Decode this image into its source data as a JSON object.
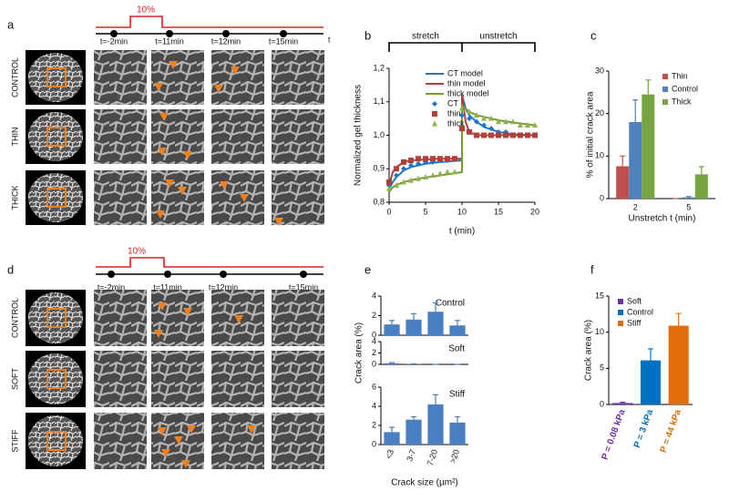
{
  "panels": {
    "a": {
      "letter": "a",
      "pulse": "10%",
      "times": [
        "t=-2min",
        "t=11min",
        "t=12min",
        "t=15min"
      ],
      "axis": "t",
      "rows": [
        "CONTROL",
        "THIN",
        "THICK"
      ]
    },
    "d": {
      "letter": "d",
      "pulse": "10%",
      "times": [
        "t=-2min",
        "t=11min",
        "t=12min",
        "t=15min"
      ],
      "rows": [
        "CONTROL",
        "SOFT",
        "STIFF"
      ]
    }
  },
  "chart_data": [
    {
      "type": "line",
      "panel": "b",
      "annotations": [
        "stretch",
        "unstretch"
      ],
      "xlabel": "t (min)",
      "ylabel": "Normalized gel thickness",
      "xlim": [
        0,
        20
      ],
      "xticks": [
        0,
        5,
        10,
        15,
        20
      ],
      "ylim": [
        0.8,
        1.2
      ],
      "yticks": [
        {
          "value": 0.8,
          "label": "0,8"
        },
        {
          "value": 0.9,
          "label": "0,9"
        },
        {
          "value": 1.0,
          "label": "1,0"
        },
        {
          "value": 1.1,
          "label": "1,1"
        },
        {
          "value": 1.2,
          "label": "1,2"
        }
      ],
      "legend": "upper right",
      "series": [
        {
          "name": "CT model",
          "color": "#1f77c4",
          "style": "line",
          "x": [
            0,
            0.5,
            1,
            2,
            3,
            5,
            7,
            10,
            10,
            10.5,
            11,
            12,
            13,
            15,
            17,
            20
          ],
          "values": [
            0.84,
            0.86,
            0.875,
            0.895,
            0.905,
            0.915,
            0.92,
            0.925,
            1.12,
            1.08,
            1.06,
            1.04,
            1.025,
            1.01,
            1.003,
            1.0
          ]
        },
        {
          "name": "thin model",
          "color": "#b0403a",
          "style": "line",
          "x": [
            0,
            0.5,
            1,
            2,
            3,
            5,
            7,
            10,
            10,
            10.5,
            11,
            12,
            13,
            15,
            17,
            20
          ],
          "values": [
            0.85,
            0.89,
            0.905,
            0.92,
            0.925,
            0.928,
            0.93,
            0.93,
            1.12,
            1.04,
            1.01,
            1.0,
            1.0,
            1.0,
            1.0,
            1.0
          ]
        },
        {
          "name": "thick model",
          "color": "#7a9a3a",
          "style": "line",
          "x": [
            0,
            0.5,
            1,
            2,
            3,
            5,
            7,
            10,
            10,
            10.5,
            11,
            12,
            13,
            15,
            17,
            20
          ],
          "values": [
            0.83,
            0.845,
            0.852,
            0.86,
            0.866,
            0.874,
            0.88,
            0.89,
            1.09,
            1.08,
            1.07,
            1.06,
            1.055,
            1.045,
            1.038,
            1.03
          ]
        },
        {
          "name": "CT",
          "color": "#1f77c4",
          "style": "marker",
          "marker": "diamond",
          "x": [
            0,
            1,
            2,
            3,
            4,
            5,
            6,
            7,
            8,
            9,
            10,
            11,
            12,
            13,
            14,
            15,
            16,
            17,
            18,
            19,
            20
          ],
          "values": [
            0.85,
            0.88,
            0.9,
            0.91,
            0.915,
            0.92,
            0.92,
            0.925,
            0.925,
            0.93,
            1.06,
            1.05,
            1.04,
            1.03,
            1.02,
            1.01,
            1.01,
            1.0,
            1.0,
            1.0,
            1.0
          ]
        },
        {
          "name": "thin",
          "color": "#b0403a",
          "style": "marker",
          "marker": "square",
          "x": [
            0,
            1,
            2,
            3,
            4,
            5,
            6,
            7,
            8,
            9,
            10,
            11,
            12,
            13,
            14,
            15,
            16,
            17,
            18,
            19,
            20
          ],
          "values": [
            0.86,
            0.9,
            0.92,
            0.925,
            0.93,
            0.93,
            0.93,
            0.93,
            0.93,
            0.93,
            1.02,
            1.01,
            1.0,
            1.0,
            1.0,
            1.0,
            1.0,
            1.0,
            1.0,
            1.0,
            1.0
          ]
        },
        {
          "name": "thick",
          "color": "#8db34a",
          "style": "marker",
          "marker": "triangle",
          "x": [
            0,
            1,
            2,
            3,
            4,
            5,
            6,
            7,
            8,
            9,
            10,
            11,
            12,
            13,
            14,
            15,
            16,
            17,
            18,
            19,
            20
          ],
          "values": [
            0.84,
            0.85,
            0.86,
            0.865,
            0.87,
            0.875,
            0.88,
            0.885,
            0.89,
            0.89,
            1.08,
            1.07,
            1.06,
            1.05,
            1.05,
            1.04,
            1.04,
            1.04,
            1.03,
            1.03,
            1.03
          ]
        }
      ]
    },
    {
      "type": "bar",
      "panel": "c",
      "xlabel": "Unstretch t (min)",
      "ylabel": "% of initial crack area",
      "categories": [
        "2",
        "5"
      ],
      "ylim": [
        0,
        30
      ],
      "yticks": [
        0,
        10,
        20,
        30
      ],
      "legend": "upper right",
      "series": [
        {
          "name": "Thin",
          "color": "#c0504d",
          "values": [
            7.6,
            0
          ],
          "errors": [
            2.4,
            0
          ]
        },
        {
          "name": "Control",
          "color": "#4f81bd",
          "values": [
            18,
            0.3
          ],
          "errors": [
            5.2,
            0.2
          ]
        },
        {
          "name": "Thick",
          "color": "#77a340",
          "values": [
            24.5,
            5.7
          ],
          "errors": [
            3.4,
            1.8
          ]
        }
      ]
    },
    {
      "type": "bar",
      "panel": "e",
      "title": "Control",
      "ylim": [
        0,
        4
      ],
      "yticks": [
        0,
        2,
        4
      ],
      "series": [
        {
          "color": "#4a7fc1",
          "values": [
            1.1,
            1.6,
            2.4,
            1.0
          ],
          "errors": [
            0.4,
            0.6,
            0.9,
            0.5
          ]
        }
      ]
    },
    {
      "type": "bar",
      "title": "Soft",
      "ylabel": "Crack area (%)",
      "ylim": [
        0,
        4
      ],
      "yticks": [
        0,
        2,
        4
      ],
      "series": [
        {
          "color": "#4a7fc1",
          "values": [
            0.2,
            0.05,
            0,
            0
          ],
          "errors": [
            0.1,
            0.05,
            0,
            0
          ]
        }
      ]
    },
    {
      "type": "bar",
      "title": "Stiff",
      "xlabel": "Crack size (µm²)",
      "categories": [
        "<3",
        "3-7",
        "7-20",
        ">20"
      ],
      "rotate_xticks": true,
      "ylim": [
        0,
        6
      ],
      "yticks": [
        0,
        2,
        4,
        6
      ],
      "series": [
        {
          "color": "#4a7fc1",
          "values": [
            1.3,
            2.6,
            4.2,
            2.3
          ],
          "errors": [
            0.5,
            0.3,
            1.0,
            0.6
          ]
        }
      ]
    },
    {
      "type": "bar",
      "panel": "f",
      "ylabel": "Crack area (%)",
      "categories": [
        "P = 0.08 kPa",
        "P = 3 kPa",
        "P = 44 kPa"
      ],
      "rotate_xticks": true,
      "ylim": [
        0,
        15
      ],
      "yticks": [
        0,
        5,
        10,
        15
      ],
      "legend": "upper left",
      "series": [
        {
          "name": "Soft",
          "color": "#7030a0",
          "values": [
            0.2,
            null,
            null
          ],
          "errors": [
            0.1,
            null,
            null
          ]
        },
        {
          "name": "Control",
          "color": "#0070c0",
          "values": [
            null,
            6.1,
            null
          ],
          "errors": [
            null,
            1.6,
            null
          ]
        },
        {
          "name": "Stiff",
          "color": "#e36c0a",
          "values": [
            null,
            null,
            10.9
          ],
          "errors": [
            null,
            null,
            1.7
          ]
        }
      ]
    }
  ]
}
